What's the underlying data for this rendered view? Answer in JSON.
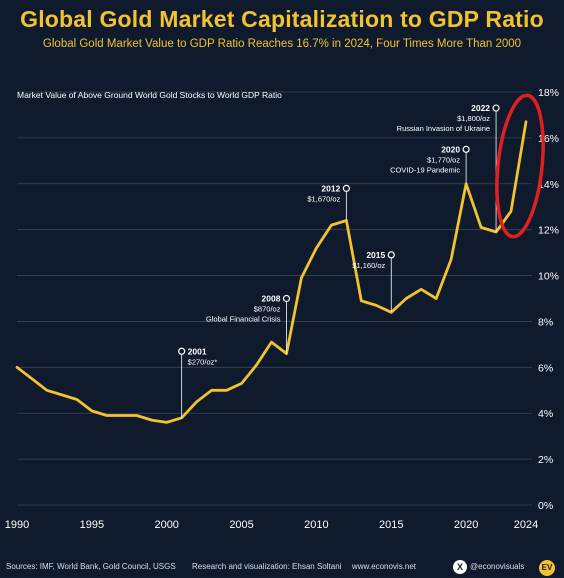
{
  "header": {
    "title": "Global Gold Market Capitalization to GDP Ratio",
    "subtitle": "Global Gold Market Value to GDP Ratio Reaches 16.7% in 2024, Four Times More Than 2000"
  },
  "footer": {
    "sources": "Sources: IMF, World Bank, Gold Council, USGS",
    "credit": "Research and visualization: Ehsan Soltani",
    "website": "www.econovis.net",
    "x_icon": "X",
    "handle": "@econovisuals",
    "badge": "EV"
  },
  "colors": {
    "background": "#0f1b2d",
    "line": "#f2c230",
    "grid": "#3a4659",
    "highlight": "#e02020",
    "text": "#ffffff"
  },
  "chart_data": {
    "type": "line",
    "title": "Global Gold Market Capitalization to GDP Ratio",
    "ylabel": "Market Value of Above Ground World Gold Stocks to World GDP Ratio",
    "xlabel": "",
    "xlim": [
      1990,
      2024
    ],
    "ylim": [
      0,
      18
    ],
    "x_ticks": [
      1990,
      1995,
      2000,
      2005,
      2010,
      2015,
      2020,
      2024
    ],
    "y_ticks": [
      "0%",
      "2%",
      "4%",
      "6%",
      "8%",
      "10%",
      "12%",
      "14%",
      "16%",
      "18%"
    ],
    "grid": true,
    "y_axis_position": "right",
    "series": [
      {
        "name": "",
        "x": [
          1990,
          1991,
          1992,
          1993,
          1994,
          1995,
          1996,
          1997,
          1998,
          1999,
          2000,
          2001,
          2002,
          2003,
          2004,
          2005,
          2006,
          2007,
          2008,
          2009,
          2010,
          2011,
          2012,
          2013,
          2014,
          2015,
          2016,
          2017,
          2018,
          2019,
          2020,
          2021,
          2022,
          2023,
          2024
        ],
        "y": [
          6.0,
          5.5,
          5.0,
          4.8,
          4.6,
          4.1,
          3.9,
          3.9,
          3.9,
          3.7,
          3.6,
          3.8,
          4.5,
          5.0,
          5.0,
          5.3,
          6.1,
          7.1,
          6.6,
          9.9,
          11.2,
          12.2,
          12.4,
          8.9,
          8.7,
          8.4,
          9.0,
          9.4,
          9.0,
          10.7,
          14.0,
          12.1,
          11.9,
          12.8,
          16.7
        ]
      }
    ],
    "annotations": [
      {
        "year": "2001",
        "line1": "$270/oz*",
        "line2": "",
        "x": 2001,
        "pin_y": 6.7,
        "base_y": 3.8
      },
      {
        "year": "2008",
        "line1": "$870/oz",
        "line2": "Global Financial Crisis",
        "x": 2008,
        "pin_y": 9.0,
        "base_y": 6.6
      },
      {
        "year": "2012",
        "line1": "$1,670/oz",
        "line2": "",
        "x": 2012,
        "pin_y": 13.8,
        "base_y": 12.4
      },
      {
        "year": "2015",
        "line1": "$1,160/oz",
        "line2": "",
        "x": 2015,
        "pin_y": 10.9,
        "base_y": 8.4
      },
      {
        "year": "2020",
        "line1": "$1,770/oz",
        "line2": "COVID-19 Pandemic",
        "x": 2020,
        "pin_y": 15.5,
        "base_y": 14.0
      },
      {
        "year": "2022",
        "line1": "$1,800/oz",
        "line2": "Russian Invasion of Ukraine",
        "x": 2022,
        "pin_y": 17.3,
        "base_y": 11.9
      }
    ]
  }
}
